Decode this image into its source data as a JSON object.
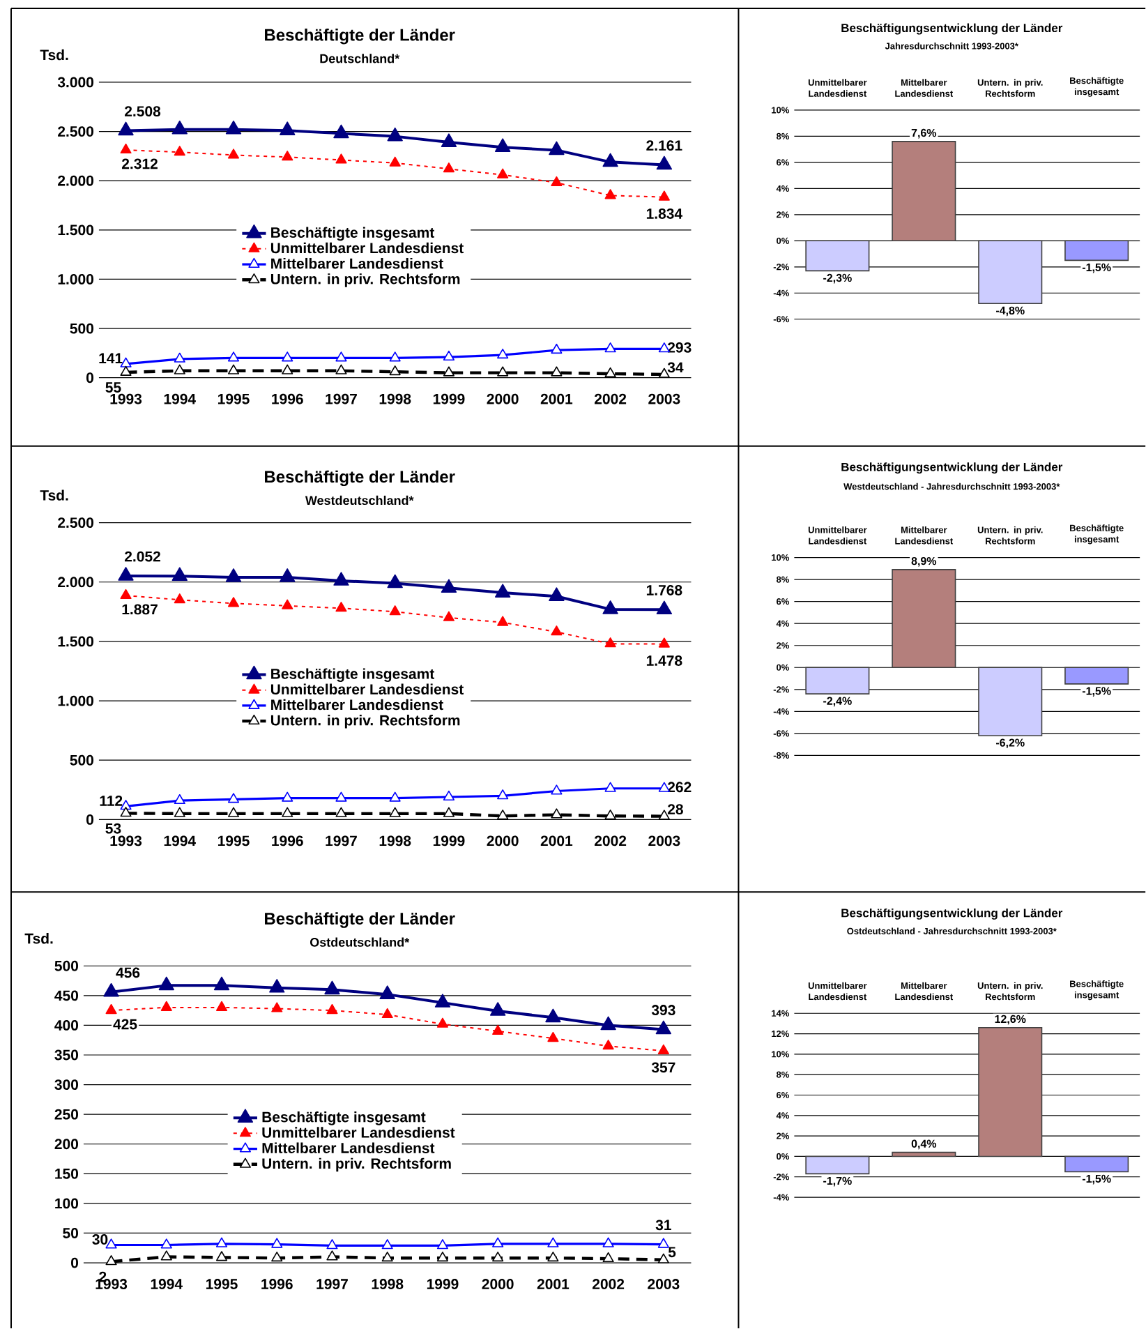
{
  "chart_data": [
    {
      "type": "line",
      "title": "Beschäftigte der Länder",
      "subtitle": "Deutschland*",
      "ylabel": "Tsd.",
      "categories": [
        "1993",
        "1994",
        "1995",
        "1996",
        "1997",
        "1998",
        "1999",
        "2000",
        "2001",
        "2002",
        "2003"
      ],
      "ylim": [
        0,
        3000
      ],
      "yticks": [
        0,
        500,
        {
          "value": 1000,
          "label": "1.000"
        },
        {
          "value": 1500,
          "label": "1.500"
        },
        {
          "value": 2000,
          "label": "2.000"
        },
        {
          "value": 2500,
          "label": "2.500"
        },
        {
          "value": 3000,
          "label": "3.000"
        }
      ],
      "grid": "y",
      "legend": "center",
      "series": [
        {
          "name": "Beschäftigte insgesamt",
          "color": "#000080",
          "line_style": "solid",
          "marker": "triangle",
          "values": [
            2508,
            2520,
            2520,
            2510,
            2480,
            2450,
            2390,
            2340,
            2310,
            2190,
            2161
          ],
          "value_labels": [
            "2.508",
            null,
            null,
            null,
            null,
            null,
            null,
            null,
            null,
            null,
            "2.161"
          ]
        },
        {
          "name": "Unmittelbarer Landesdienst",
          "color": "#ff0000",
          "line_style": "dotted",
          "marker": "triangle",
          "values": [
            2312,
            2290,
            2260,
            2240,
            2210,
            2180,
            2120,
            2060,
            1980,
            1850,
            1834
          ],
          "value_labels": [
            "2.312",
            null,
            null,
            null,
            null,
            null,
            null,
            null,
            null,
            null,
            "1.834"
          ]
        },
        {
          "name": "Mittelbarer Landesdienst",
          "color": "#0000ff",
          "line_style": "solid",
          "marker": "triangle",
          "values": [
            141,
            190,
            200,
            200,
            200,
            200,
            210,
            230,
            280,
            293,
            293
          ],
          "value_labels": [
            "141",
            null,
            null,
            null,
            null,
            null,
            null,
            null,
            null,
            null,
            "293"
          ]
        },
        {
          "name": "Untern. in priv. Rechtsform",
          "color": "#000000",
          "line_style": "dashed",
          "marker": "triangle",
          "values": [
            55,
            70,
            70,
            70,
            70,
            60,
            50,
            50,
            50,
            40,
            34
          ],
          "value_labels": [
            "55",
            null,
            null,
            null,
            null,
            null,
            null,
            null,
            null,
            null,
            "34"
          ]
        }
      ]
    },
    {
      "type": "bar",
      "title": "Beschäftigungsentwicklung der Länder",
      "subtitle": "Jahresdurchschnitt 1993-2003*",
      "categories": [
        "Unmittelbarer Landesdienst",
        "Mittelbarer Landesdienst",
        "Untern. in priv. Rechtsform",
        "Beschäftigte insgesamt"
      ],
      "values": [
        -2.3,
        7.6,
        -4.8,
        -1.5
      ],
      "value_labels": [
        "-2,3%",
        "7,6%",
        "-4,8%",
        "-1,5%"
      ],
      "colors": [
        "#ccccff",
        "#b47f7c",
        "#ccccff",
        "#9999ff"
      ],
      "ylim": [
        -6,
        10
      ],
      "yticks": [
        {
          "value": -6,
          "label": "-6%"
        },
        {
          "value": -4,
          "label": "-4%"
        },
        {
          "value": -2,
          "label": "-2%"
        },
        {
          "value": 0,
          "label": "0%"
        },
        {
          "value": 2,
          "label": "2%"
        },
        {
          "value": 4,
          "label": "4%"
        },
        {
          "value": 6,
          "label": "6%"
        },
        {
          "value": 8,
          "label": "8%"
        },
        {
          "value": 10,
          "label": "10%"
        }
      ],
      "grid": "y"
    },
    {
      "type": "line",
      "title": "Beschäftigte der Länder",
      "subtitle": "Westdeutschland*",
      "ylabel": "Tsd.",
      "categories": [
        "1993",
        "1994",
        "1995",
        "1996",
        "1997",
        "1998",
        "1999",
        "2000",
        "2001",
        "2002",
        "2003"
      ],
      "ylim": [
        0,
        2500
      ],
      "yticks": [
        0,
        500,
        {
          "value": 1000,
          "label": "1.000"
        },
        {
          "value": 1500,
          "label": "1.500"
        },
        {
          "value": 2000,
          "label": "2.000"
        },
        {
          "value": 2500,
          "label": "2.500"
        }
      ],
      "grid": "y",
      "legend": "center",
      "series": [
        {
          "name": "Beschäftigte insgesamt",
          "color": "#000080",
          "line_style": "solid",
          "marker": "triangle",
          "values": [
            2052,
            2050,
            2040,
            2040,
            2010,
            1990,
            1950,
            1910,
            1880,
            1770,
            1768
          ],
          "value_labels": [
            "2.052",
            null,
            null,
            null,
            null,
            null,
            null,
            null,
            null,
            null,
            "1.768"
          ]
        },
        {
          "name": "Unmittelbarer Landesdienst",
          "color": "#ff0000",
          "line_style": "dotted",
          "marker": "triangle",
          "values": [
            1887,
            1850,
            1820,
            1800,
            1780,
            1750,
            1700,
            1660,
            1580,
            1480,
            1478
          ],
          "value_labels": [
            "1.887",
            null,
            null,
            null,
            null,
            null,
            null,
            null,
            null,
            null,
            "1.478"
          ]
        },
        {
          "name": "Mittelbarer Landesdienst",
          "color": "#0000ff",
          "line_style": "solid",
          "marker": "triangle",
          "values": [
            112,
            160,
            170,
            180,
            180,
            180,
            190,
            200,
            240,
            262,
            262
          ],
          "value_labels": [
            "112",
            null,
            null,
            null,
            null,
            null,
            null,
            null,
            null,
            null,
            "262"
          ]
        },
        {
          "name": "Untern. in priv. Rechtsform",
          "color": "#000000",
          "line_style": "dashed",
          "marker": "triangle",
          "values": [
            53,
            50,
            50,
            50,
            50,
            50,
            50,
            30,
            40,
            30,
            28
          ],
          "value_labels": [
            "53",
            null,
            null,
            null,
            null,
            null,
            null,
            null,
            null,
            null,
            "28"
          ]
        }
      ]
    },
    {
      "type": "bar",
      "title": "Beschäftigungsentwicklung der Länder",
      "subtitle": "Westdeutschland - Jahresdurchschnitt 1993-2003*",
      "categories": [
        "Unmittelbarer Landesdienst",
        "Mittelbarer Landesdienst",
        "Untern. in priv. Rechtsform",
        "Beschäftigte insgesamt"
      ],
      "values": [
        -2.4,
        8.9,
        -6.2,
        -1.5
      ],
      "value_labels": [
        "-2,4%",
        "8,9%",
        "-6,2%",
        "-1,5%"
      ],
      "colors": [
        "#ccccff",
        "#b47f7c",
        "#ccccff",
        "#9999ff"
      ],
      "ylim": [
        -8,
        10
      ],
      "yticks": [
        {
          "value": -8,
          "label": "-8%"
        },
        {
          "value": -6,
          "label": "-6%"
        },
        {
          "value": -4,
          "label": "-4%"
        },
        {
          "value": -2,
          "label": "-2%"
        },
        {
          "value": 0,
          "label": "0%"
        },
        {
          "value": 2,
          "label": "2%"
        },
        {
          "value": 4,
          "label": "4%"
        },
        {
          "value": 6,
          "label": "6%"
        },
        {
          "value": 8,
          "label": "8%"
        },
        {
          "value": 10,
          "label": "10%"
        }
      ],
      "grid": "y"
    },
    {
      "type": "line",
      "title": "Beschäftigte der Länder",
      "subtitle": "Ostdeutschland*",
      "ylabel": "Tsd.",
      "categories": [
        "1993",
        "1994",
        "1995",
        "1996",
        "1997",
        "1998",
        "1999",
        "2000",
        "2001",
        "2002",
        "2003"
      ],
      "ylim": [
        0,
        500
      ],
      "yticks": [
        0,
        50,
        100,
        150,
        200,
        250,
        300,
        350,
        400,
        450,
        500
      ],
      "grid": "y",
      "legend": "center",
      "series": [
        {
          "name": "Beschäftigte insgesamt",
          "color": "#000080",
          "line_style": "solid",
          "marker": "triangle",
          "values": [
            456,
            467,
            467,
            463,
            460,
            452,
            438,
            424,
            413,
            400,
            393
          ],
          "value_labels": [
            "456",
            null,
            null,
            null,
            null,
            null,
            null,
            null,
            null,
            null,
            "393"
          ]
        },
        {
          "name": "Unmittelbarer Landesdienst",
          "color": "#ff0000",
          "line_style": "dotted",
          "marker": "triangle",
          "values": [
            425,
            430,
            430,
            428,
            425,
            418,
            402,
            390,
            378,
            365,
            357
          ],
          "value_labels": [
            "425",
            null,
            null,
            null,
            null,
            null,
            null,
            null,
            null,
            null,
            "357"
          ]
        },
        {
          "name": "Mittelbarer Landesdienst",
          "color": "#0000ff",
          "line_style": "solid",
          "marker": "triangle",
          "values": [
            30,
            30,
            32,
            31,
            29,
            29,
            29,
            32,
            32,
            32,
            31
          ],
          "value_labels": [
            "30",
            null,
            null,
            null,
            null,
            null,
            null,
            null,
            null,
            null,
            "31"
          ]
        },
        {
          "name": "Untern. in priv. Rechtsform",
          "color": "#000000",
          "line_style": "dashed",
          "marker": "triangle",
          "values": [
            2,
            10,
            9,
            8,
            10,
            8,
            8,
            8,
            8,
            7,
            5
          ],
          "value_labels": [
            "2",
            null,
            null,
            null,
            null,
            null,
            null,
            null,
            null,
            null,
            "5"
          ]
        }
      ]
    },
    {
      "type": "bar",
      "title": "Beschäftigungsentwicklung der Länder",
      "subtitle": "Ostdeutschland - Jahresdurchschnitt 1993-2003*",
      "categories": [
        "Unmittelbarer Landesdienst",
        "Mittelbarer Landesdienst",
        "Untern. in priv. Rechtsform",
        "Beschäftigte insgesamt"
      ],
      "values": [
        -1.7,
        0.4,
        12.6,
        -1.5
      ],
      "value_labels": [
        "-1,7%",
        "0,4%",
        "12,6%",
        "-1,5%"
      ],
      "colors": [
        "#ccccff",
        "#b47f7c",
        "#b47f7c",
        "#9999ff"
      ],
      "ylim": [
        -4,
        14
      ],
      "yticks": [
        {
          "value": -4,
          "label": "-4%"
        },
        {
          "value": -2,
          "label": "-2%"
        },
        {
          "value": 0,
          "label": "0%"
        },
        {
          "value": 2,
          "label": "2%"
        },
        {
          "value": 4,
          "label": "4%"
        },
        {
          "value": 6,
          "label": "6%"
        },
        {
          "value": 8,
          "label": "8%"
        },
        {
          "value": 10,
          "label": "10%"
        },
        {
          "value": 12,
          "label": "12%"
        },
        {
          "value": 14,
          "label": "14%"
        }
      ],
      "grid": "y"
    }
  ]
}
